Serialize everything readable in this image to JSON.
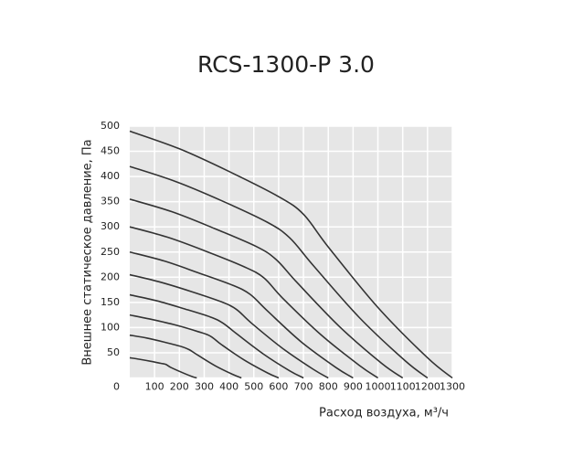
{
  "chart_data": {
    "type": "line",
    "title": "RCS-1300-P 3.0",
    "x_label": "Расход воздуха, м³/ч",
    "y_label": "Внешнее статическое давление, Па",
    "xlim": [
      0,
      1300
    ],
    "ylim": [
      0,
      500
    ],
    "xticks": [
      100,
      200,
      300,
      400,
      500,
      600,
      700,
      800,
      900,
      1000,
      1100,
      1200,
      1300
    ],
    "yticks": [
      0,
      50,
      100,
      150,
      200,
      250,
      300,
      350,
      400,
      450,
      500
    ],
    "grid": true,
    "background": "#e6e6e6",
    "series": [
      {
        "color": "#333333",
        "x": [
          0,
          200,
          400,
          600,
          700,
          800,
          1000,
          1200,
          1300
        ],
        "values": [
          490,
          455,
          410,
          360,
          325,
          260,
          140,
          40,
          0
        ]
      },
      {
        "color": "#333333",
        "x": [
          0,
          185,
          370,
          555,
          645,
          740,
          925,
          1110,
          1200
        ],
        "values": [
          420,
          390,
          352,
          309,
          278,
          223,
          120,
          34,
          0
        ]
      },
      {
        "color": "#333333",
        "x": [
          0,
          170,
          340,
          510,
          590,
          675,
          845,
          1015,
          1100
        ],
        "values": [
          355,
          330,
          297,
          261,
          235,
          189,
          102,
          29,
          0
        ]
      },
      {
        "color": "#333333",
        "x": [
          0,
          155,
          310,
          460,
          540,
          615,
          770,
          925,
          1000
        ],
        "values": [
          300,
          279,
          251,
          221,
          199,
          159,
          86,
          25,
          0
        ]
      },
      {
        "color": "#333333",
        "x": [
          0,
          140,
          275,
          415,
          485,
          555,
          690,
          830,
          900
        ],
        "values": [
          250,
          232,
          209,
          184,
          166,
          133,
          72,
          21,
          0
        ]
      },
      {
        "color": "#333333",
        "x": [
          0,
          125,
          245,
          370,
          430,
          490,
          615,
          740,
          800
        ],
        "values": [
          205,
          190,
          172,
          151,
          136,
          109,
          59,
          17,
          0
        ]
      },
      {
        "color": "#333333",
        "x": [
          0,
          110,
          215,
          325,
          375,
          430,
          540,
          645,
          700
        ],
        "values": [
          165,
          153,
          138,
          121,
          109,
          88,
          47,
          14,
          0
        ]
      },
      {
        "color": "#333333",
        "x": [
          0,
          90,
          185,
          275,
          325,
          370,
          460,
          555,
          600
        ],
        "values": [
          125,
          116,
          105,
          92,
          83,
          66,
          36,
          10,
          0
        ]
      },
      {
        "color": "#333333",
        "x": [
          0,
          70,
          140,
          210,
          240,
          275,
          345,
          415,
          450
        ],
        "values": [
          85,
          79,
          71,
          62,
          56,
          45,
          24,
          7,
          0
        ]
      },
      {
        "color": "#333333",
        "x": [
          0,
          40,
          85,
          125,
          145,
          165,
          210,
          250,
          270
        ],
        "values": [
          40,
          37,
          33,
          29,
          27,
          21,
          11,
          3,
          0
        ]
      }
    ]
  }
}
